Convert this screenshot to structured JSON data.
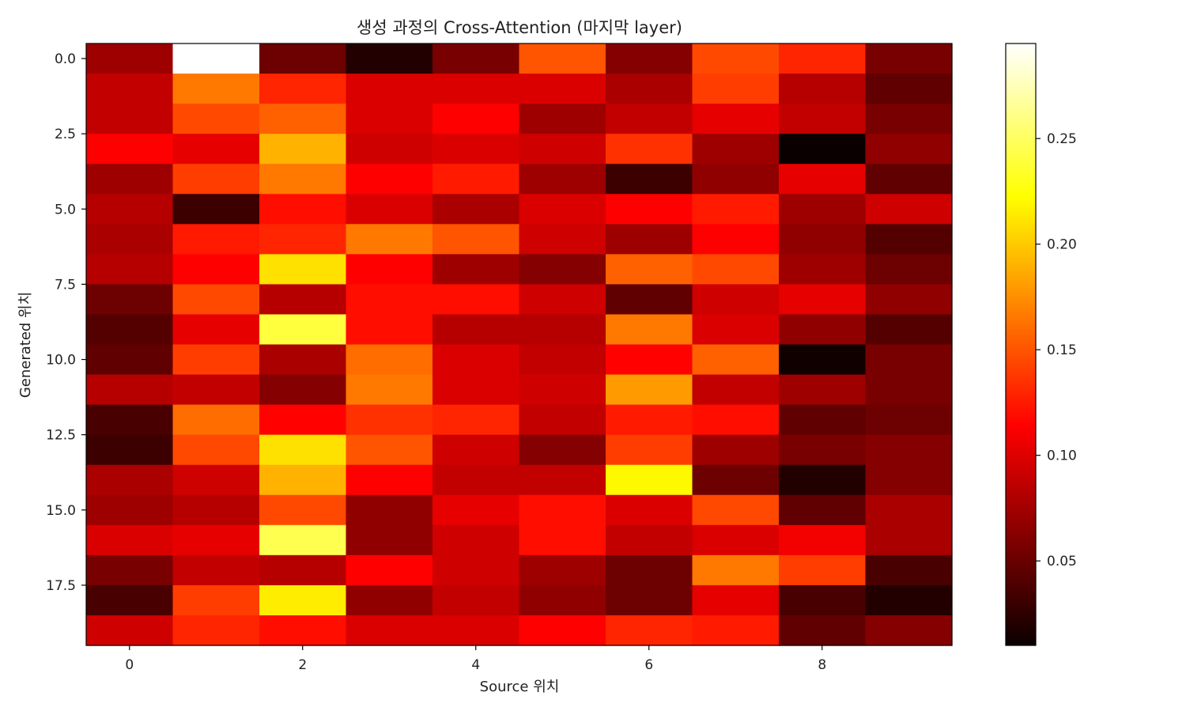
{
  "chart_data": {
    "type": "heatmap",
    "title": "생성 과정의 Cross-Attention (마지막 layer)",
    "xlabel": "Source 위치",
    "ylabel": "Generated 위치",
    "colormap": "hot",
    "vmin": 0.01,
    "vmax": 0.295,
    "x_range": [
      -0.5,
      9.5
    ],
    "y_range": [
      -0.5,
      19.5
    ],
    "y_inverted": true,
    "x_ticks": [
      0,
      2,
      4,
      6,
      8
    ],
    "x_tick_labels": [
      "0",
      "2",
      "4",
      "6",
      "8"
    ],
    "y_ticks": [
      0,
      2.5,
      5,
      7.5,
      10,
      12.5,
      15,
      17.5
    ],
    "y_tick_labels": [
      "0.0",
      "2.5",
      "5.0",
      "7.5",
      "10.0",
      "12.5",
      "15.0",
      "17.5"
    ],
    "colorbar_ticks": [
      0.05,
      0.1,
      0.15,
      0.2,
      0.25
    ],
    "colorbar_tick_labels": [
      "0.05",
      "0.10",
      "0.15",
      "0.20",
      "0.25"
    ],
    "grid": false,
    "rows": 20,
    "cols": 10,
    "values": [
      [
        0.07,
        0.295,
        0.05,
        0.02,
        0.055,
        0.15,
        0.06,
        0.145,
        0.13,
        0.055
      ],
      [
        0.085,
        0.165,
        0.13,
        0.095,
        0.095,
        0.095,
        0.075,
        0.14,
        0.08,
        0.045
      ],
      [
        0.085,
        0.145,
        0.155,
        0.095,
        0.11,
        0.07,
        0.085,
        0.1,
        0.085,
        0.055
      ],
      [
        0.11,
        0.1,
        0.19,
        0.09,
        0.095,
        0.09,
        0.135,
        0.07,
        0.01,
        0.065
      ],
      [
        0.07,
        0.14,
        0.165,
        0.11,
        0.125,
        0.07,
        0.03,
        0.065,
        0.1,
        0.045
      ],
      [
        0.08,
        0.03,
        0.12,
        0.095,
        0.075,
        0.095,
        0.11,
        0.125,
        0.07,
        0.09
      ],
      [
        0.075,
        0.125,
        0.13,
        0.165,
        0.15,
        0.09,
        0.07,
        0.11,
        0.065,
        0.04
      ],
      [
        0.08,
        0.11,
        0.21,
        0.11,
        0.07,
        0.06,
        0.155,
        0.145,
        0.07,
        0.05
      ],
      [
        0.05,
        0.145,
        0.08,
        0.12,
        0.12,
        0.09,
        0.045,
        0.09,
        0.1,
        0.065
      ],
      [
        0.04,
        0.1,
        0.24,
        0.12,
        0.08,
        0.08,
        0.165,
        0.095,
        0.065,
        0.04
      ],
      [
        0.045,
        0.14,
        0.075,
        0.16,
        0.095,
        0.085,
        0.115,
        0.155,
        0.012,
        0.055
      ],
      [
        0.08,
        0.085,
        0.06,
        0.165,
        0.095,
        0.09,
        0.18,
        0.085,
        0.07,
        0.055
      ],
      [
        0.035,
        0.16,
        0.115,
        0.135,
        0.13,
        0.085,
        0.125,
        0.12,
        0.045,
        0.05
      ],
      [
        0.03,
        0.145,
        0.21,
        0.15,
        0.09,
        0.06,
        0.14,
        0.07,
        0.055,
        0.06
      ],
      [
        0.075,
        0.09,
        0.19,
        0.11,
        0.085,
        0.085,
        0.22,
        0.05,
        0.02,
        0.06
      ],
      [
        0.07,
        0.08,
        0.145,
        0.065,
        0.1,
        0.12,
        0.095,
        0.145,
        0.045,
        0.075
      ],
      [
        0.095,
        0.1,
        0.245,
        0.065,
        0.09,
        0.12,
        0.085,
        0.095,
        0.105,
        0.075
      ],
      [
        0.055,
        0.085,
        0.08,
        0.11,
        0.09,
        0.07,
        0.05,
        0.165,
        0.14,
        0.035
      ],
      [
        0.035,
        0.14,
        0.215,
        0.065,
        0.085,
        0.065,
        0.05,
        0.1,
        0.035,
        0.02
      ],
      [
        0.09,
        0.13,
        0.12,
        0.095,
        0.095,
        0.11,
        0.13,
        0.125,
        0.045,
        0.06
      ]
    ]
  }
}
